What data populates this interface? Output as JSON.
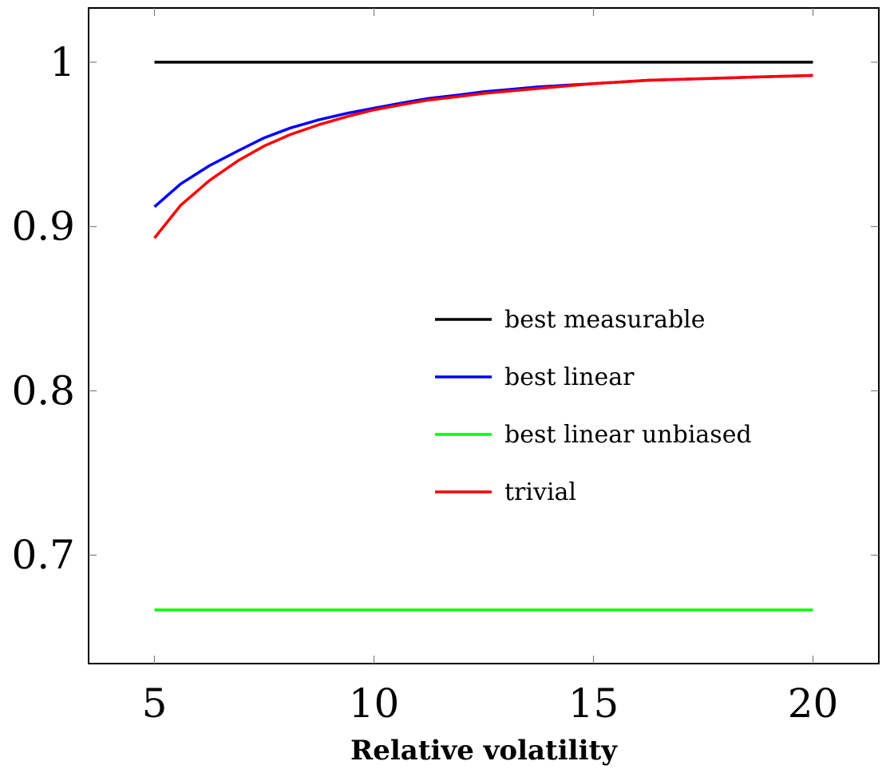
{
  "chart_data": {
    "type": "line",
    "title": "",
    "xlabel": "Relative volatility",
    "ylabel": "",
    "xlim": [
      3.5,
      21.5
    ],
    "ylim": [
      0.634,
      1.033
    ],
    "xticks": [
      5,
      10,
      15,
      20
    ],
    "xtick_labels": [
      "5",
      "10",
      "15",
      "20"
    ],
    "yticks": [
      0.7,
      0.8,
      0.9,
      1.0
    ],
    "ytick_labels": [
      "0.7",
      "0.8",
      "0.9",
      "1"
    ],
    "grid": false,
    "legend_position": "center-right",
    "series": [
      {
        "name": "best measurable",
        "color": "#000000",
        "x": [
          5,
          20
        ],
        "y": [
          1.0,
          1.0
        ]
      },
      {
        "name": "best linear",
        "color": "#0000ff",
        "x": [
          5,
          5.6,
          6.25,
          6.9,
          7.5,
          8.1,
          8.75,
          9.4,
          10,
          10.6,
          11.25,
          11.9,
          12.5,
          13.75,
          15,
          16.25,
          17.5,
          18.75,
          20
        ],
        "y": [
          0.912,
          0.926,
          0.937,
          0.946,
          0.954,
          0.96,
          0.965,
          0.969,
          0.972,
          0.975,
          0.978,
          0.98,
          0.982,
          0.985,
          0.987,
          0.989,
          0.99,
          0.991,
          0.992
        ]
      },
      {
        "name": "best linear unbiased",
        "color": "#00ff00",
        "x": [
          5,
          20
        ],
        "y": [
          0.6667,
          0.6667
        ]
      },
      {
        "name": "trivial",
        "color": "#ff0000",
        "x": [
          5,
          5.6,
          6.25,
          6.9,
          7.5,
          8.1,
          8.75,
          9.4,
          10,
          10.6,
          11.25,
          11.9,
          12.5,
          13.75,
          15,
          16.25,
          17.5,
          18.75,
          20
        ],
        "y": [
          0.893,
          0.913,
          0.928,
          0.94,
          0.949,
          0.956,
          0.962,
          0.967,
          0.971,
          0.974,
          0.977,
          0.979,
          0.981,
          0.984,
          0.987,
          0.989,
          0.99,
          0.991,
          0.992
        ]
      }
    ]
  }
}
